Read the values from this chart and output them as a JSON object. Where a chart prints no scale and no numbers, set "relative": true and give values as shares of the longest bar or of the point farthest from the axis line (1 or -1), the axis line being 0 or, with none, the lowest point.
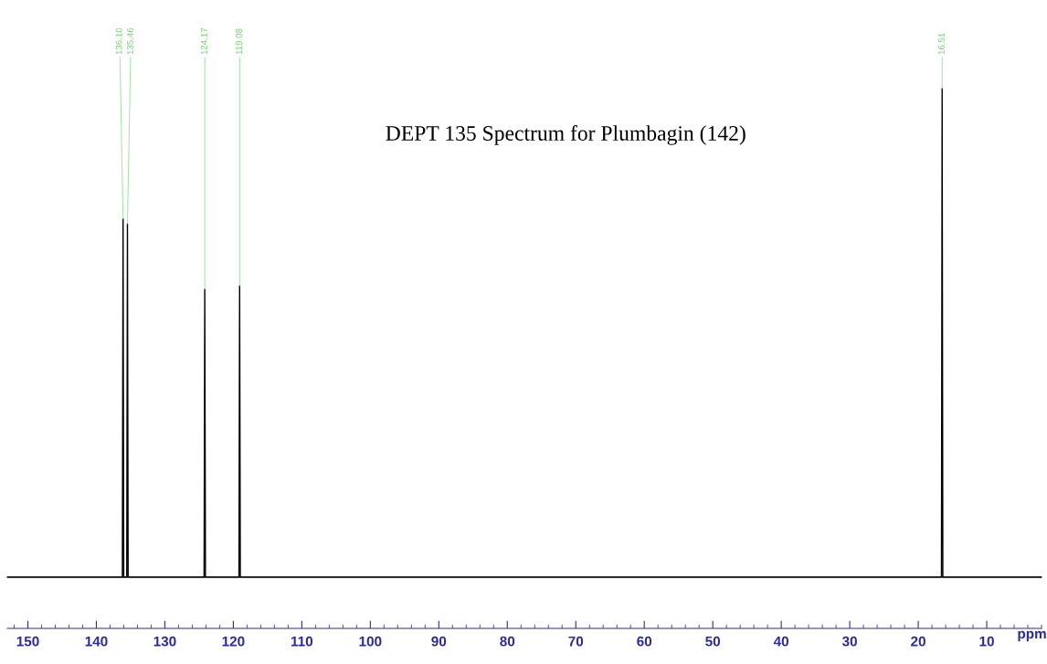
{
  "chart_data": {
    "type": "line",
    "relative": true,
    "title": "DEPT 135 Spectrum for Plumbagin (142)",
    "xlabel": "ppm",
    "x": [
      153,
      136.2,
      136.1,
      136.0,
      135.56,
      135.46,
      135.36,
      124.27,
      124.17,
      124.07,
      119.18,
      119.08,
      118.98,
      16.61,
      16.51,
      16.41,
      2
    ],
    "series": [
      {
        "color": "#000000",
        "values": [
          0,
          0,
          0.733,
          0,
          0,
          0.723,
          0,
          0,
          0.589,
          0,
          0,
          0.596,
          0,
          0,
          1,
          0,
          0
        ]
      }
    ],
    "xlim": [
      153,
      2
    ],
    "xticks": [
      150,
      140,
      130,
      120,
      110,
      100,
      90,
      80,
      70,
      60,
      50,
      40,
      30,
      20,
      10
    ],
    "annotations": [
      {
        "text": "136.10",
        "x": 136.1,
        "y": 0.733
      },
      {
        "text": "135.46",
        "x": 135.46,
        "y": 0.723
      },
      {
        "text": "124.17",
        "x": 124.17,
        "y": 0.589
      },
      {
        "text": "119.08",
        "x": 119.08,
        "y": 0.596
      },
      {
        "text": "16.51",
        "x": 16.51,
        "y": 1
      }
    ],
    "grid": false,
    "legend": false,
    "marker": "none",
    "line_style": "solid"
  }
}
